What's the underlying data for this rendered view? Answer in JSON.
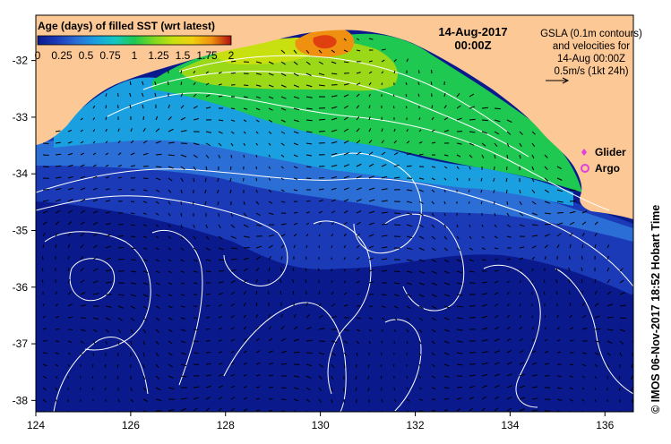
{
  "map": {
    "colorbar": {
      "title": "Age (days) of filled SST (wrt latest)",
      "tick_labels": [
        "0",
        "0.25",
        "0.5",
        "0.75",
        "1",
        "1.25",
        "1.5",
        "1.75",
        "2"
      ],
      "colors": [
        "#0a1a8c",
        "#1b3ab8",
        "#2a6ed6",
        "#1aa0e0",
        "#14c8c0",
        "#1fc850",
        "#7fd820",
        "#c8e010",
        "#f0d010",
        "#f09010",
        "#e04010",
        "#b01010"
      ]
    },
    "date_line1": "14-Aug-2017",
    "date_line2": "00:00Z",
    "note_lines": [
      "GSLA (0.1m contours)",
      "and velocities for",
      "14-Aug 00:00Z",
      "0.5m/s (1kt 24h)"
    ],
    "legend": [
      {
        "label": "Glider",
        "color": "#e040e0"
      },
      {
        "label": "Argo",
        "color": "#e040e0"
      }
    ],
    "credit": "© IMOS 06-Nov-2017 18:52 Hobart Time",
    "xaxis": {
      "labels": [
        "124",
        "126",
        "128",
        "130",
        "132",
        "134",
        "136"
      ],
      "values": [
        124,
        126,
        128,
        130,
        132,
        134,
        136
      ],
      "range": [
        124,
        136.6
      ]
    },
    "yaxis": {
      "labels": [
        "-32",
        "-33",
        "-34",
        "-35",
        "-36",
        "-37",
        "-38"
      ],
      "values": [
        -32,
        -33,
        -34,
        -35,
        -36,
        -37,
        -38
      ],
      "range": [
        -38.2,
        -31.2
      ]
    },
    "colors": {
      "land": "#fbc896",
      "deep_ocean": "#0a1a8c",
      "mid_ocean": "#1b3ab8",
      "contour": "#ffffff",
      "vector": "#000000"
    }
  }
}
